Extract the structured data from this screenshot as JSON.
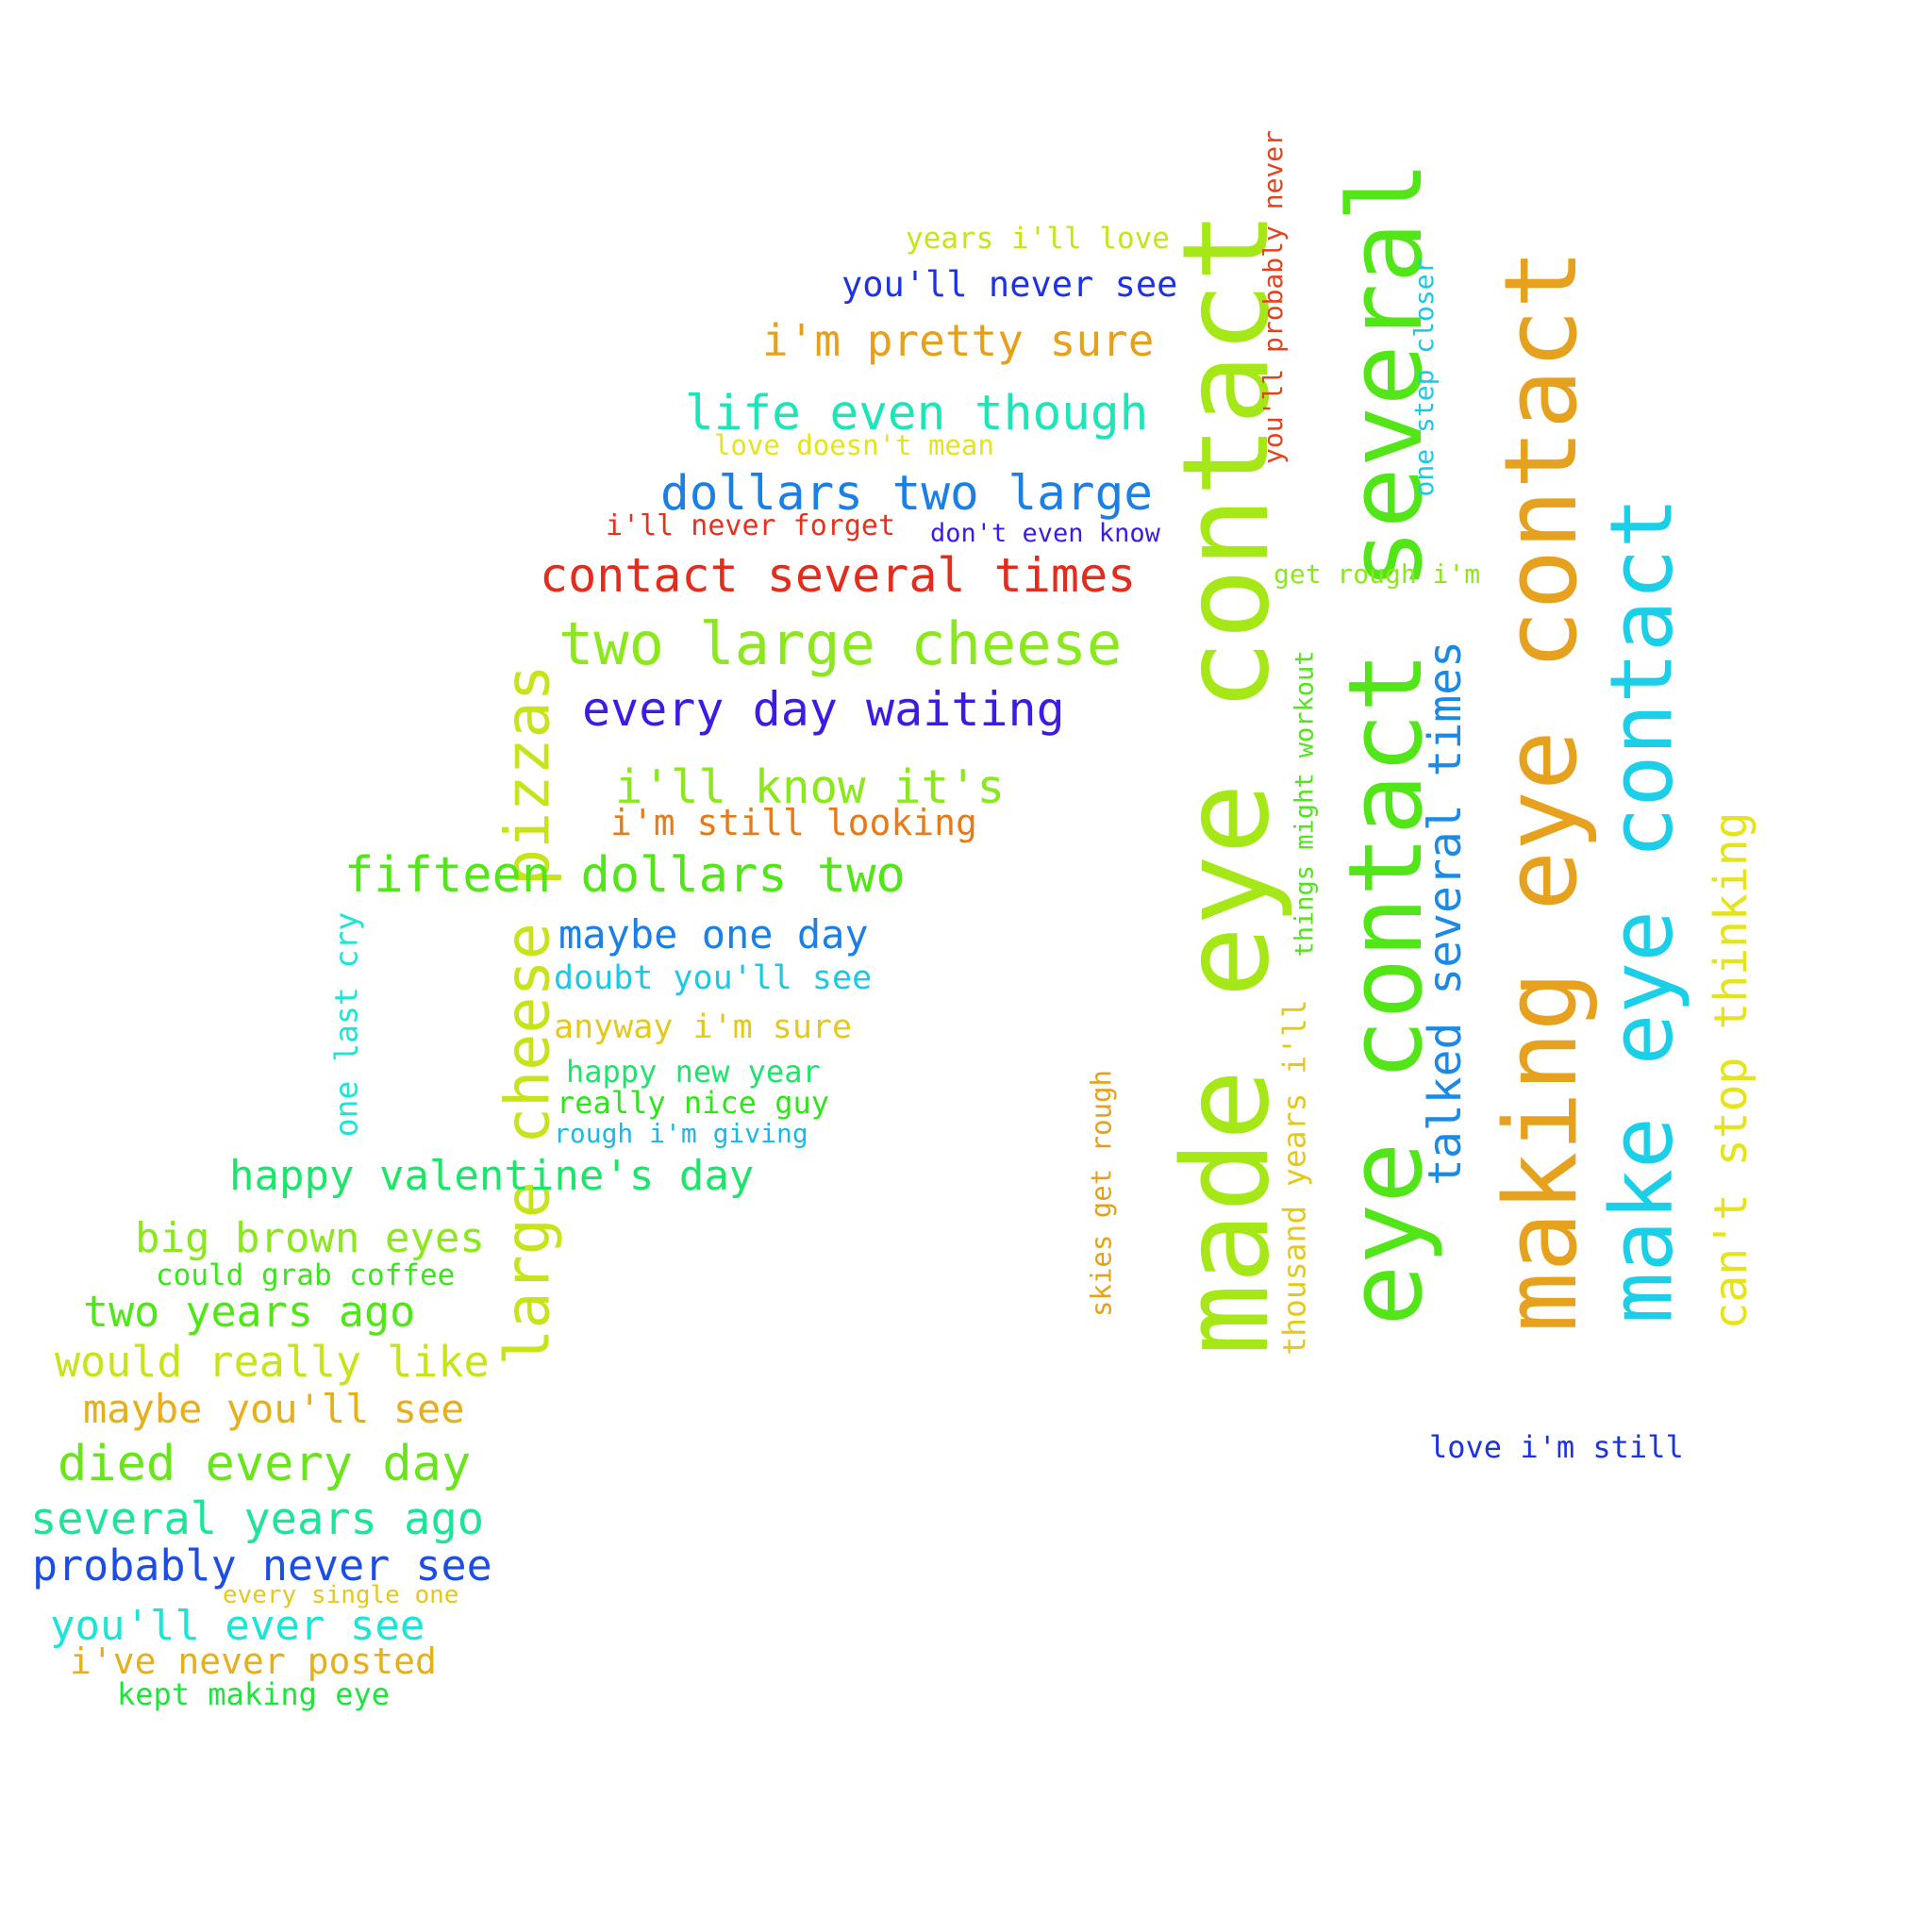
{
  "phrases": [
    {
      "text": "made eye contact",
      "color": "#a6e817"
    },
    {
      "text": "eye contact several",
      "color": "#52e517"
    },
    {
      "text": "making eye contact",
      "color": "#e6a11e"
    },
    {
      "text": "make eye contact",
      "color": "#1ccfe8"
    },
    {
      "text": "large cheese pizzas",
      "color": "#c8e31a"
    },
    {
      "text": "two large cheese",
      "color": "#8ae81c"
    },
    {
      "text": "contact several times",
      "color": "#e52b1c"
    },
    {
      "text": "dollars two large",
      "color": "#1c7fe5"
    },
    {
      "text": "life even though",
      "color": "#1ce5b8"
    },
    {
      "text": "i'm pretty sure",
      "color": "#e5a11c"
    },
    {
      "text": "you'll never see",
      "color": "#1c32e5"
    },
    {
      "text": "years i'll love",
      "color": "#c8e31a"
    },
    {
      "text": "love doesn't mean",
      "color": "#e5e31c"
    },
    {
      "text": "i'll never forget",
      "color": "#e5321c"
    },
    {
      "text": "don't even know",
      "color": "#3a1ce5"
    },
    {
      "text": "every day waiting",
      "color": "#3a1ce5"
    },
    {
      "text": "i'll know it's",
      "color": "#8ae81c"
    },
    {
      "text": "i'm still looking",
      "color": "#e57b1c"
    },
    {
      "text": "fifteen dollars two",
      "color": "#52e517"
    },
    {
      "text": "maybe one day",
      "color": "#1c7fe5"
    },
    {
      "text": "doubt you'll see",
      "color": "#1cc8e5"
    },
    {
      "text": "anyway i'm sure",
      "color": "#e5c81c"
    },
    {
      "text": "happy new year",
      "color": "#1ce56a"
    },
    {
      "text": "really nice guy",
      "color": "#2ee517"
    },
    {
      "text": "rough i'm giving",
      "color": "#1cb8e5"
    },
    {
      "text": "happy valentine's day",
      "color": "#1ce56a"
    },
    {
      "text": "big brown eyes",
      "color": "#8ae81c"
    },
    {
      "text": "could grab coffee",
      "color": "#3ae51c"
    },
    {
      "text": "two years ago",
      "color": "#52e517"
    },
    {
      "text": "would really like",
      "color": "#c8e31a"
    },
    {
      "text": "maybe you'll see",
      "color": "#e5b01c"
    },
    {
      "text": "died every day",
      "color": "#6ae51c"
    },
    {
      "text": "several years ago",
      "color": "#1ce59a"
    },
    {
      "text": "probably never see",
      "color": "#1c4ee5"
    },
    {
      "text": "every single one",
      "color": "#e5c81c"
    },
    {
      "text": "you'll ever see",
      "color": "#1ce5d6"
    },
    {
      "text": "i've never posted",
      "color": "#e5b01c"
    },
    {
      "text": "kept making eye",
      "color": "#1ce53a"
    },
    {
      "text": "one last cry",
      "color": "#1ce5d6"
    },
    {
      "text": "you'll probably never",
      "color": "#e5421c"
    },
    {
      "text": "one step closer",
      "color": "#1cc8e5"
    },
    {
      "text": "get rough i'm",
      "color": "#8ae81c"
    },
    {
      "text": "talked several times",
      "color": "#1c8ae5"
    },
    {
      "text": "things might workout",
      "color": "#52e51c"
    },
    {
      "text": "thousand years i'll",
      "color": "#e5c81c"
    },
    {
      "text": "skies get rough",
      "color": "#e5a11c"
    },
    {
      "text": "can't stop thinking",
      "color": "#e5e31c"
    },
    {
      "text": "love i'm still",
      "color": "#1c32e5"
    }
  ]
}
